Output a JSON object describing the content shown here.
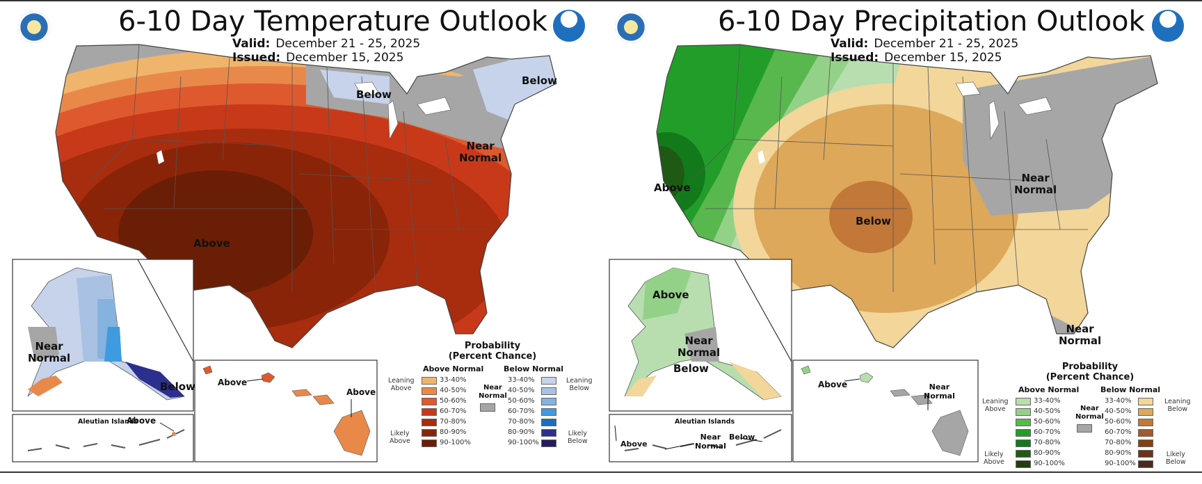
{
  "panels": [
    {
      "title": "6-10 Day Temperature Outlook",
      "valid_label": "Valid:",
      "valid_value": "December 21 - 25, 2025",
      "issued_label": "Issued:",
      "issued_value": "December 15, 2025",
      "map_labels": {
        "below_northeast": "Below",
        "below_greatlakes": "Below",
        "near_normal_1": "Near",
        "near_normal_2": "Normal",
        "above_conus": "Above",
        "ak_near_1": "Near",
        "ak_near_2": "Normal",
        "ak_below": "Below",
        "hi_above_1": "Above",
        "hi_above_2": "Above",
        "aleutian": "Aleutian Islands",
        "aleutian_above": "Above"
      },
      "legend": {
        "heading_1": "Probability",
        "heading_2": "(Percent Chance)",
        "above_header": "Above Normal",
        "below_header": "Below Normal",
        "near_1": "Near",
        "near_2": "Normal",
        "leaning_left": [
          "Leaning",
          "Above"
        ],
        "likely_left": [
          "Likely",
          "Above"
        ],
        "leaning_right": [
          "Leaning",
          "Below"
        ],
        "likely_right": [
          "Likely",
          "Below"
        ],
        "ranges": [
          "33-40%",
          "40-50%",
          "50-60%",
          "60-70%",
          "70-80%",
          "80-90%",
          "90-100%"
        ],
        "above_colors": [
          "#f0b56c",
          "#e8894a",
          "#de5a2e",
          "#c8391a",
          "#a82c0e",
          "#8a2408",
          "#6a1e05"
        ],
        "below_colors": [
          "#c6d3ea",
          "#a9c2e3",
          "#86b2df",
          "#3f9be0",
          "#1870b8",
          "#2d2f8f",
          "#241c5c"
        ],
        "near_color": "#a6a6a6"
      }
    },
    {
      "title": "6-10 Day Precipitation Outlook",
      "valid_label": "Valid:",
      "valid_value": "December 21 - 25, 2025",
      "issued_label": "Issued:",
      "issued_value": "December 15, 2025",
      "map_labels": {
        "above_west": "Above",
        "below_plains": "Below",
        "near_ohio_1": "Near",
        "near_ohio_2": "Normal",
        "near_fl_1": "Near",
        "near_fl_2": "Normal",
        "ak_above": "Above",
        "ak_near_1": "Near",
        "ak_near_2": "Normal",
        "ak_below": "Below",
        "hi_above": "Above",
        "hi_near_1": "Near",
        "hi_near_2": "Normal",
        "aleutian": "Aleutian Islands",
        "aleutian_above": "Above",
        "aleutian_near_1": "Near",
        "aleutian_near_2": "Normal",
        "aleutian_below": "Below"
      },
      "legend": {
        "heading_1": "Probability",
        "heading_2": "(Percent Chance)",
        "above_header": "Above Normal",
        "below_header": "Below Normal",
        "near_1": "Near",
        "near_2": "Normal",
        "leaning_left": [
          "Leaning",
          "Above"
        ],
        "likely_left": [
          "Likely",
          "Above"
        ],
        "leaning_right": [
          "Leaning",
          "Below"
        ],
        "likely_right": [
          "Likely",
          "Below"
        ],
        "ranges": [
          "33-40%",
          "40-50%",
          "50-60%",
          "60-70%",
          "70-80%",
          "80-90%",
          "90-100%"
        ],
        "above_colors": [
          "#b8deb0",
          "#94d188",
          "#58b84e",
          "#239d2a",
          "#137a1c",
          "#1f5a14",
          "#243c0e"
        ],
        "below_colors": [
          "#f2d69a",
          "#dda85a",
          "#c27838",
          "#a35a2a",
          "#7f4414",
          "#6a3418",
          "#4a2a1e"
        ],
        "near_color": "#a6a6a6"
      }
    }
  ]
}
